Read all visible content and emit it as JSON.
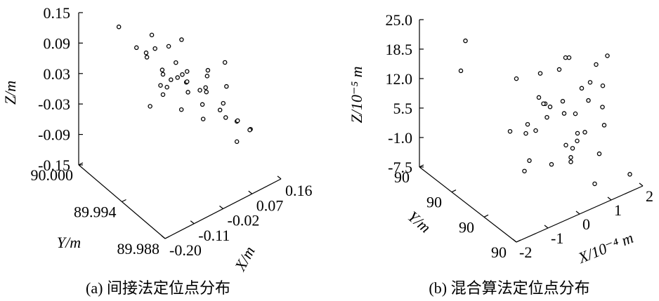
{
  "chart_data": [
    {
      "type": "scatter3d",
      "caption": "(a) 间接法定位点分布",
      "xlabel": "X/m",
      "ylabel": "Y/m",
      "zlabel": "Z/m",
      "xlim": [
        -0.2,
        0.16
      ],
      "ylim": [
        89.988,
        90.0
      ],
      "zlim": [
        -0.15,
        0.15
      ],
      "xticks": [
        {
          "value": -0.2,
          "label": "-0.20"
        },
        -0.11,
        -0.02,
        0.07,
        0.16
      ],
      "yticks": [
        {
          "value": 90,
          "label": "90.000"
        },
        89.994,
        89.988
      ],
      "zticks": [
        0.15,
        0.09,
        0.03,
        -0.03,
        -0.09,
        -0.15
      ],
      "color": "#000000",
      "x": [
        -0.05,
        0.02,
        -0.08,
        0.06,
        0.0,
        -0.03,
        0.09,
        -0.11,
        0.04,
        -0.01,
        0.07,
        -0.06,
        0.03,
        -0.09,
        0.11,
        -0.02,
        0.05,
        -0.04,
        0.08,
        0.01,
        -0.07,
        0.13,
        -0.12,
        0.06,
        -0.03,
        0.02,
        0.1,
        -0.05,
        0.0,
        0.04,
        -0.08,
        0.07,
        -0.01,
        0.03,
        -0.06,
        0.12,
        -0.1,
        0.05,
        -0.02,
        0.09
      ],
      "y": [
        89.995,
        89.993,
        89.996,
        89.992,
        89.994,
        89.997,
        89.991,
        89.996,
        89.993,
        89.995,
        89.992,
        89.994,
        89.996,
        89.995,
        89.99,
        89.993,
        89.994,
        89.997,
        89.992,
        89.995,
        89.993,
        89.991,
        89.998,
        89.994,
        89.996,
        89.992,
        89.993,
        89.995,
        89.991,
        89.997,
        89.994,
        89.99,
        89.996,
        89.993,
        89.992,
        89.994,
        89.995,
        89.996,
        89.993,
        89.991
      ],
      "z": [
        0.04,
        0.01,
        0.08,
        -0.03,
        0.02,
        0.06,
        -0.05,
        0.1,
        0.0,
        0.05,
        -0.02,
        0.03,
        0.07,
        -0.01,
        -0.06,
        0.04,
        -0.04,
        0.09,
        0.01,
        0.02,
        0.06,
        -0.08,
        0.12,
        -0.01,
        0.03,
        0.05,
        -0.07,
        0.0,
        0.08,
        -0.02,
        0.04,
        -0.03,
        0.07,
        -0.05,
        0.01,
        0.02,
        0.09,
        -0.04,
        0.06,
        -0.09
      ]
    },
    {
      "type": "scatter3d",
      "caption": "(b) 混合算法定位点分布",
      "xlabel": "X/10⁻⁴ m",
      "ylabel": "Y/m",
      "zlabel": "Z/10⁻⁵ m",
      "xlim": [
        -2,
        2
      ],
      "ylim": [
        89.994,
        90.006
      ],
      "zlim": [
        -7.5,
        25
      ],
      "xticks": [
        -2,
        -1,
        0,
        1,
        2
      ],
      "yticks": [
        {
          "value": 90.006,
          "label": "90"
        },
        {
          "value": 90.002,
          "label": "90"
        },
        {
          "value": 89.998,
          "label": "90"
        },
        {
          "value": 89.994,
          "label": "90"
        }
      ],
      "zticks": [
        {
          "value": 25,
          "label": "25.0"
        },
        18.5,
        {
          "value": 12,
          "label": "12.0"
        },
        5.5,
        {
          "value": -1,
          "label": "-1.0"
        },
        -7.5
      ],
      "color": "#000000",
      "x": [
        0.5,
        1.2,
        0.8,
        1.8,
        0.2,
        1.0,
        1.5,
        0.6,
        2.0,
        0.9,
        1.3,
        0.4,
        1.7,
        1.1,
        0.7,
        1.9,
        0.3,
        1.4,
        0.8,
        1.6,
        1.0,
        0.5,
        1.2,
        2.1,
        0.9,
        1.5,
        0.6,
        1.3,
        0.1,
        1.8,
        1.1,
        0.7,
        1.4,
        1.0,
        0.4,
        1.6,
        -1.2,
        -0.8,
        0.3,
        1.9
      ],
      "y": [
        90.0,
        89.999,
        90.002,
        89.998,
        90.001,
        90.0,
        89.997,
        90.003,
        89.999,
        90.001,
        89.998,
        90.002,
        90.0,
        89.997,
        90.001,
        89.999,
        90.003,
        90.0,
        89.998,
        90.002,
        89.999,
        90.001,
        90.0,
        89.996,
        90.002,
        89.998,
        90.0,
        90.001,
        90.003,
        89.999,
        90.0,
        89.997,
        90.002,
        89.999,
        90.001,
        90.0,
        90.004,
        90.005,
        90.002,
        89.998
      ],
      "z": [
        4,
        -2,
        10,
        1,
        -6,
        6,
        12,
        -4,
        3,
        -9,
        8,
        0,
        -3,
        14,
        5,
        -7,
        9,
        2,
        -1,
        11,
        -5,
        7,
        15,
        -8,
        3,
        -11,
        6,
        1,
        -2,
        13,
        -4,
        4,
        9,
        -6,
        0,
        7,
        14,
        18,
        -10,
        16
      ]
    }
  ]
}
